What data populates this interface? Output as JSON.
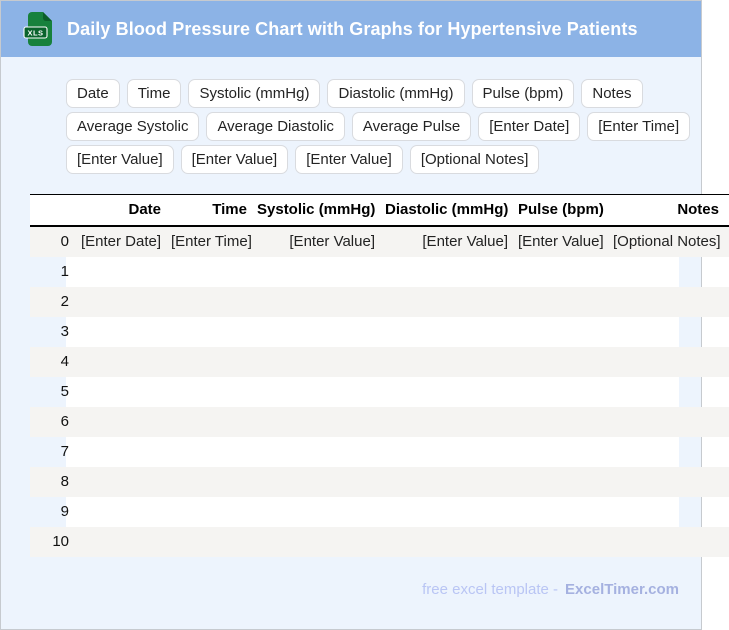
{
  "header": {
    "title": "Daily Blood Pressure Chart with Graphs for Hypertensive Patients",
    "file_badge": "XLS"
  },
  "tag_rows": [
    [
      "Date",
      "Time",
      "Systolic (mmHg)",
      "Diastolic (mmHg)",
      "Pulse (bpm)",
      "Notes"
    ],
    [
      "Average Systolic",
      "Average Diastolic",
      "Average Pulse",
      "[Enter Date]",
      "[Enter Time]"
    ],
    [
      "[Enter Value]",
      "[Enter Value]",
      "[Enter Value]",
      "[Optional Notes]"
    ]
  ],
  "table": {
    "columns": [
      "",
      "Date",
      "Time",
      "Systolic (mmHg)",
      "Diastolic (mmHg)",
      "Pulse (bpm)",
      "Notes"
    ],
    "rows": [
      [
        "0",
        "[Enter Date]",
        "[Enter Time]",
        "[Enter Value]",
        "[Enter Value]",
        "[Enter Value]",
        "[Optional Notes]"
      ],
      [
        "1",
        "",
        "",
        "",
        "",
        "",
        ""
      ],
      [
        "2",
        "",
        "",
        "",
        "",
        "",
        ""
      ],
      [
        "3",
        "",
        "",
        "",
        "",
        "",
        ""
      ],
      [
        "4",
        "",
        "",
        "",
        "",
        "",
        ""
      ],
      [
        "5",
        "",
        "",
        "",
        "",
        "",
        ""
      ],
      [
        "6",
        "",
        "",
        "",
        "",
        "",
        ""
      ],
      [
        "7",
        "",
        "",
        "",
        "",
        "",
        ""
      ],
      [
        "8",
        "",
        "",
        "",
        "",
        "",
        ""
      ],
      [
        "9",
        "",
        "",
        "",
        "",
        "",
        ""
      ],
      [
        "10",
        "",
        "",
        "",
        "",
        "",
        ""
      ]
    ]
  },
  "footer": {
    "prefix": "free excel template -",
    "brand": "ExcelTimer.com"
  },
  "colors": {
    "header_bg": "#8cb3e6",
    "page_bg": "#edf4fd",
    "stripe": "#f5f4f2",
    "icon_green": "#17813c",
    "footer_light": "#b9c5f4",
    "footer_brand": "#a5b1e0"
  }
}
